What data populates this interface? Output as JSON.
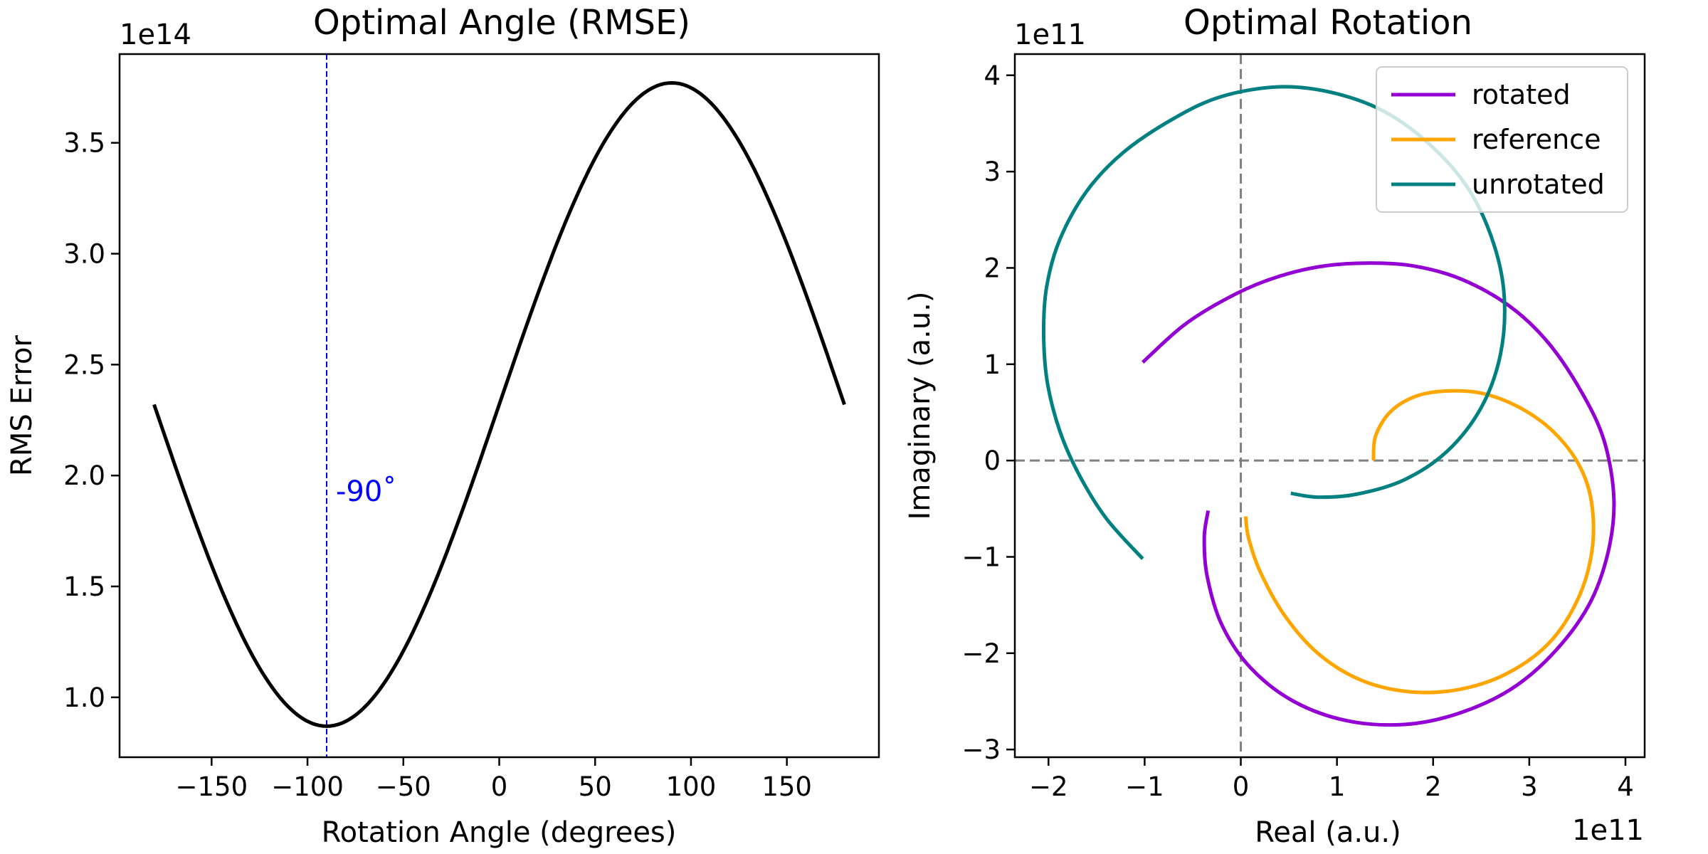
{
  "chart_data": [
    {
      "type": "line",
      "title": "Optimal Angle (RMSE)",
      "xlabel": "Rotation Angle (degrees)",
      "ylabel": "RMS Error",
      "y_offset_label": "1e14",
      "xlim": [
        -198,
        198
      ],
      "ylim": [
        0.73,
        3.9
      ],
      "y_scale_factor": 100000000000000.0,
      "x_ticks": [
        -150,
        -100,
        -50,
        0,
        50,
        100,
        150
      ],
      "x_tick_labels": [
        "−150",
        "−100",
        "−50",
        "0",
        "50",
        "100",
        "150"
      ],
      "y_ticks": [
        1.0,
        1.5,
        2.0,
        2.5,
        3.0,
        3.5
      ],
      "y_tick_labels": [
        "1.0",
        "1.5",
        "2.0",
        "2.5",
        "3.0",
        "3.5"
      ],
      "series": [
        {
          "color": "#000000",
          "x_range": [
            -180,
            180
          ],
          "model": "mean + amplitude * sin(x in degrees)",
          "mean": 2.32,
          "amplitude": 1.45
        }
      ],
      "vline": {
        "x": -90,
        "color": "#0000ff",
        "style": "dashed"
      },
      "annotation": {
        "text": "-90$^\\circ$",
        "display": "-90˚",
        "x": -90,
        "y": 1.93,
        "color": "#0000ff"
      },
      "grid": false
    },
    {
      "type": "line",
      "title": "Optimal Rotation",
      "xlabel": "Real (a.u.)",
      "ylabel": "Imaginary (a.u.)",
      "x_offset_label": "1e11",
      "y_offset_label": "1e11",
      "xlim": [
        -2.35,
        4.2
      ],
      "ylim": [
        -3.08,
        4.22
      ],
      "scale_factor": 100000000000.0,
      "x_ticks": [
        -2,
        -1,
        0,
        1,
        2,
        3,
        4
      ],
      "x_tick_labels": [
        "−2",
        "−1",
        "0",
        "1",
        "2",
        "3",
        "4"
      ],
      "y_ticks": [
        -3,
        -2,
        -1,
        0,
        1,
        2,
        3,
        4
      ],
      "y_tick_labels": [
        "−3",
        "−2",
        "−1",
        "0",
        "1",
        "2",
        "3",
        "4"
      ],
      "reference_lines": {
        "x": 0,
        "y": 0,
        "color": "#808080",
        "style": "dashed"
      },
      "series": [
        {
          "name": "rotated",
          "color": "#9400d3",
          "points": [
            [
              -1.02,
              1.02
            ],
            [
              -0.6,
              1.4
            ],
            [
              -0.15,
              1.68
            ],
            [
              0.3,
              1.88
            ],
            [
              0.8,
              2.01
            ],
            [
              1.3,
              2.05
            ],
            [
              1.8,
              2.02
            ],
            [
              2.3,
              1.88
            ],
            [
              2.8,
              1.6
            ],
            [
              3.2,
              1.22
            ],
            [
              3.55,
              0.7
            ],
            [
              3.78,
              0.2
            ],
            [
              3.88,
              -0.4
            ],
            [
              3.82,
              -0.95
            ],
            [
              3.62,
              -1.5
            ],
            [
              3.25,
              -2.0
            ],
            [
              2.8,
              -2.38
            ],
            [
              2.25,
              -2.63
            ],
            [
              1.7,
              -2.74
            ],
            [
              1.1,
              -2.7
            ],
            [
              0.55,
              -2.5
            ],
            [
              0.1,
              -2.15
            ],
            [
              -0.2,
              -1.7
            ],
            [
              -0.35,
              -1.2
            ],
            [
              -0.38,
              -0.8
            ],
            [
              -0.34,
              -0.52
            ]
          ]
        },
        {
          "name": "reference",
          "color": "#ffa500",
          "points": [
            [
              1.38,
              0.0
            ],
            [
              1.4,
              0.25
            ],
            [
              1.55,
              0.5
            ],
            [
              1.8,
              0.66
            ],
            [
              2.1,
              0.72
            ],
            [
              2.5,
              0.7
            ],
            [
              2.9,
              0.55
            ],
            [
              3.25,
              0.3
            ],
            [
              3.52,
              -0.05
            ],
            [
              3.65,
              -0.45
            ],
            [
              3.65,
              -0.95
            ],
            [
              3.5,
              -1.45
            ],
            [
              3.2,
              -1.9
            ],
            [
              2.75,
              -2.22
            ],
            [
              2.25,
              -2.38
            ],
            [
              1.75,
              -2.4
            ],
            [
              1.25,
              -2.28
            ],
            [
              0.8,
              -2.0
            ],
            [
              0.45,
              -1.6
            ],
            [
              0.2,
              -1.15
            ],
            [
              0.08,
              -0.8
            ],
            [
              0.05,
              -0.58
            ]
          ]
        },
        {
          "name": "unrotated",
          "color": "#008080",
          "points": [
            [
              -1.02,
              -1.02
            ],
            [
              -1.4,
              -0.6
            ],
            [
              -1.68,
              -0.15
            ],
            [
              -1.88,
              0.3
            ],
            [
              -2.01,
              0.8
            ],
            [
              -2.05,
              1.3
            ],
            [
              -2.02,
              1.8
            ],
            [
              -1.88,
              2.3
            ],
            [
              -1.6,
              2.8
            ],
            [
              -1.22,
              3.2
            ],
            [
              -0.7,
              3.55
            ],
            [
              -0.2,
              3.78
            ],
            [
              0.4,
              3.88
            ],
            [
              0.95,
              3.82
            ],
            [
              1.5,
              3.62
            ],
            [
              2.0,
              3.25
            ],
            [
              2.38,
              2.8
            ],
            [
              2.63,
              2.25
            ],
            [
              2.74,
              1.7
            ],
            [
              2.7,
              1.1
            ],
            [
              2.5,
              0.55
            ],
            [
              2.15,
              0.1
            ],
            [
              1.7,
              -0.2
            ],
            [
              1.2,
              -0.35
            ],
            [
              0.8,
              -0.38
            ],
            [
              0.52,
              -0.34
            ]
          ]
        }
      ],
      "legend": {
        "position": "top-right",
        "entries": [
          "rotated",
          "reference",
          "unrotated"
        ]
      },
      "grid": false
    }
  ]
}
